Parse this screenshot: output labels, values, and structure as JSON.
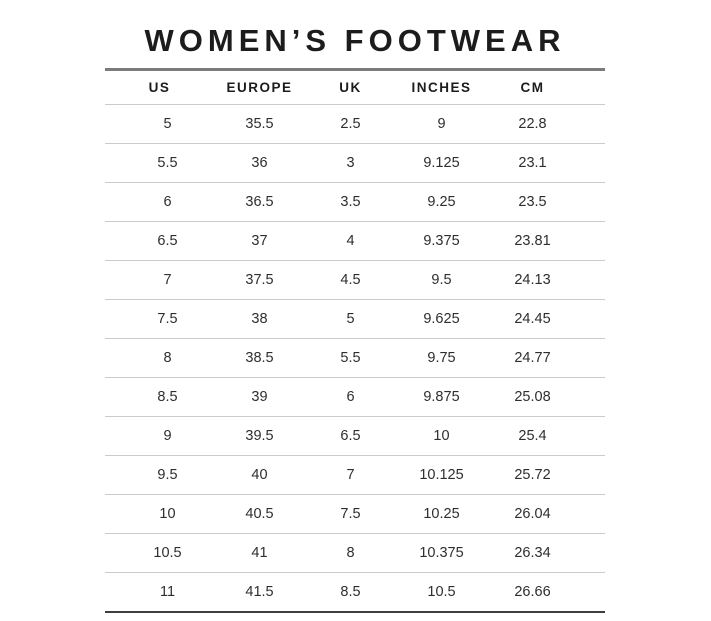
{
  "chart_data": {
    "type": "table",
    "title": "WOMEN’S FOOTWEAR",
    "columns": [
      "US",
      "EUROPE",
      "UK",
      "INCHES",
      "CM"
    ],
    "rows": [
      [
        "5",
        "35.5",
        "2.5",
        "9",
        "22.8"
      ],
      [
        "5.5",
        "36",
        "3",
        "9.125",
        "23.1"
      ],
      [
        "6",
        "36.5",
        "3.5",
        "9.25",
        "23.5"
      ],
      [
        "6.5",
        "37",
        "4",
        "9.375",
        "23.81"
      ],
      [
        "7",
        "37.5",
        "4.5",
        "9.5",
        "24.13"
      ],
      [
        "7.5",
        "38",
        "5",
        "9.625",
        "24.45"
      ],
      [
        "8",
        "38.5",
        "5.5",
        "9.75",
        "24.77"
      ],
      [
        "8.5",
        "39",
        "6",
        "9.875",
        "25.08"
      ],
      [
        "9",
        "39.5",
        "6.5",
        "10",
        "25.4"
      ],
      [
        "9.5",
        "40",
        "7",
        "10.125",
        "25.72"
      ],
      [
        "10",
        "40.5",
        "7.5",
        "10.25",
        "26.04"
      ],
      [
        "10.5",
        "41",
        "8",
        "10.375",
        "26.34"
      ],
      [
        "11",
        "41.5",
        "8.5",
        "10.5",
        "26.66"
      ]
    ]
  },
  "colors": {
    "background": "#ffffff",
    "title_text": "#1c1c1c",
    "header_text": "#1c1c1c",
    "cell_text": "#2e2e2e",
    "top_rule": "#7b7b7b",
    "bottom_rule": "#3e3e3e",
    "row_divider": "#cbcbcb"
  }
}
